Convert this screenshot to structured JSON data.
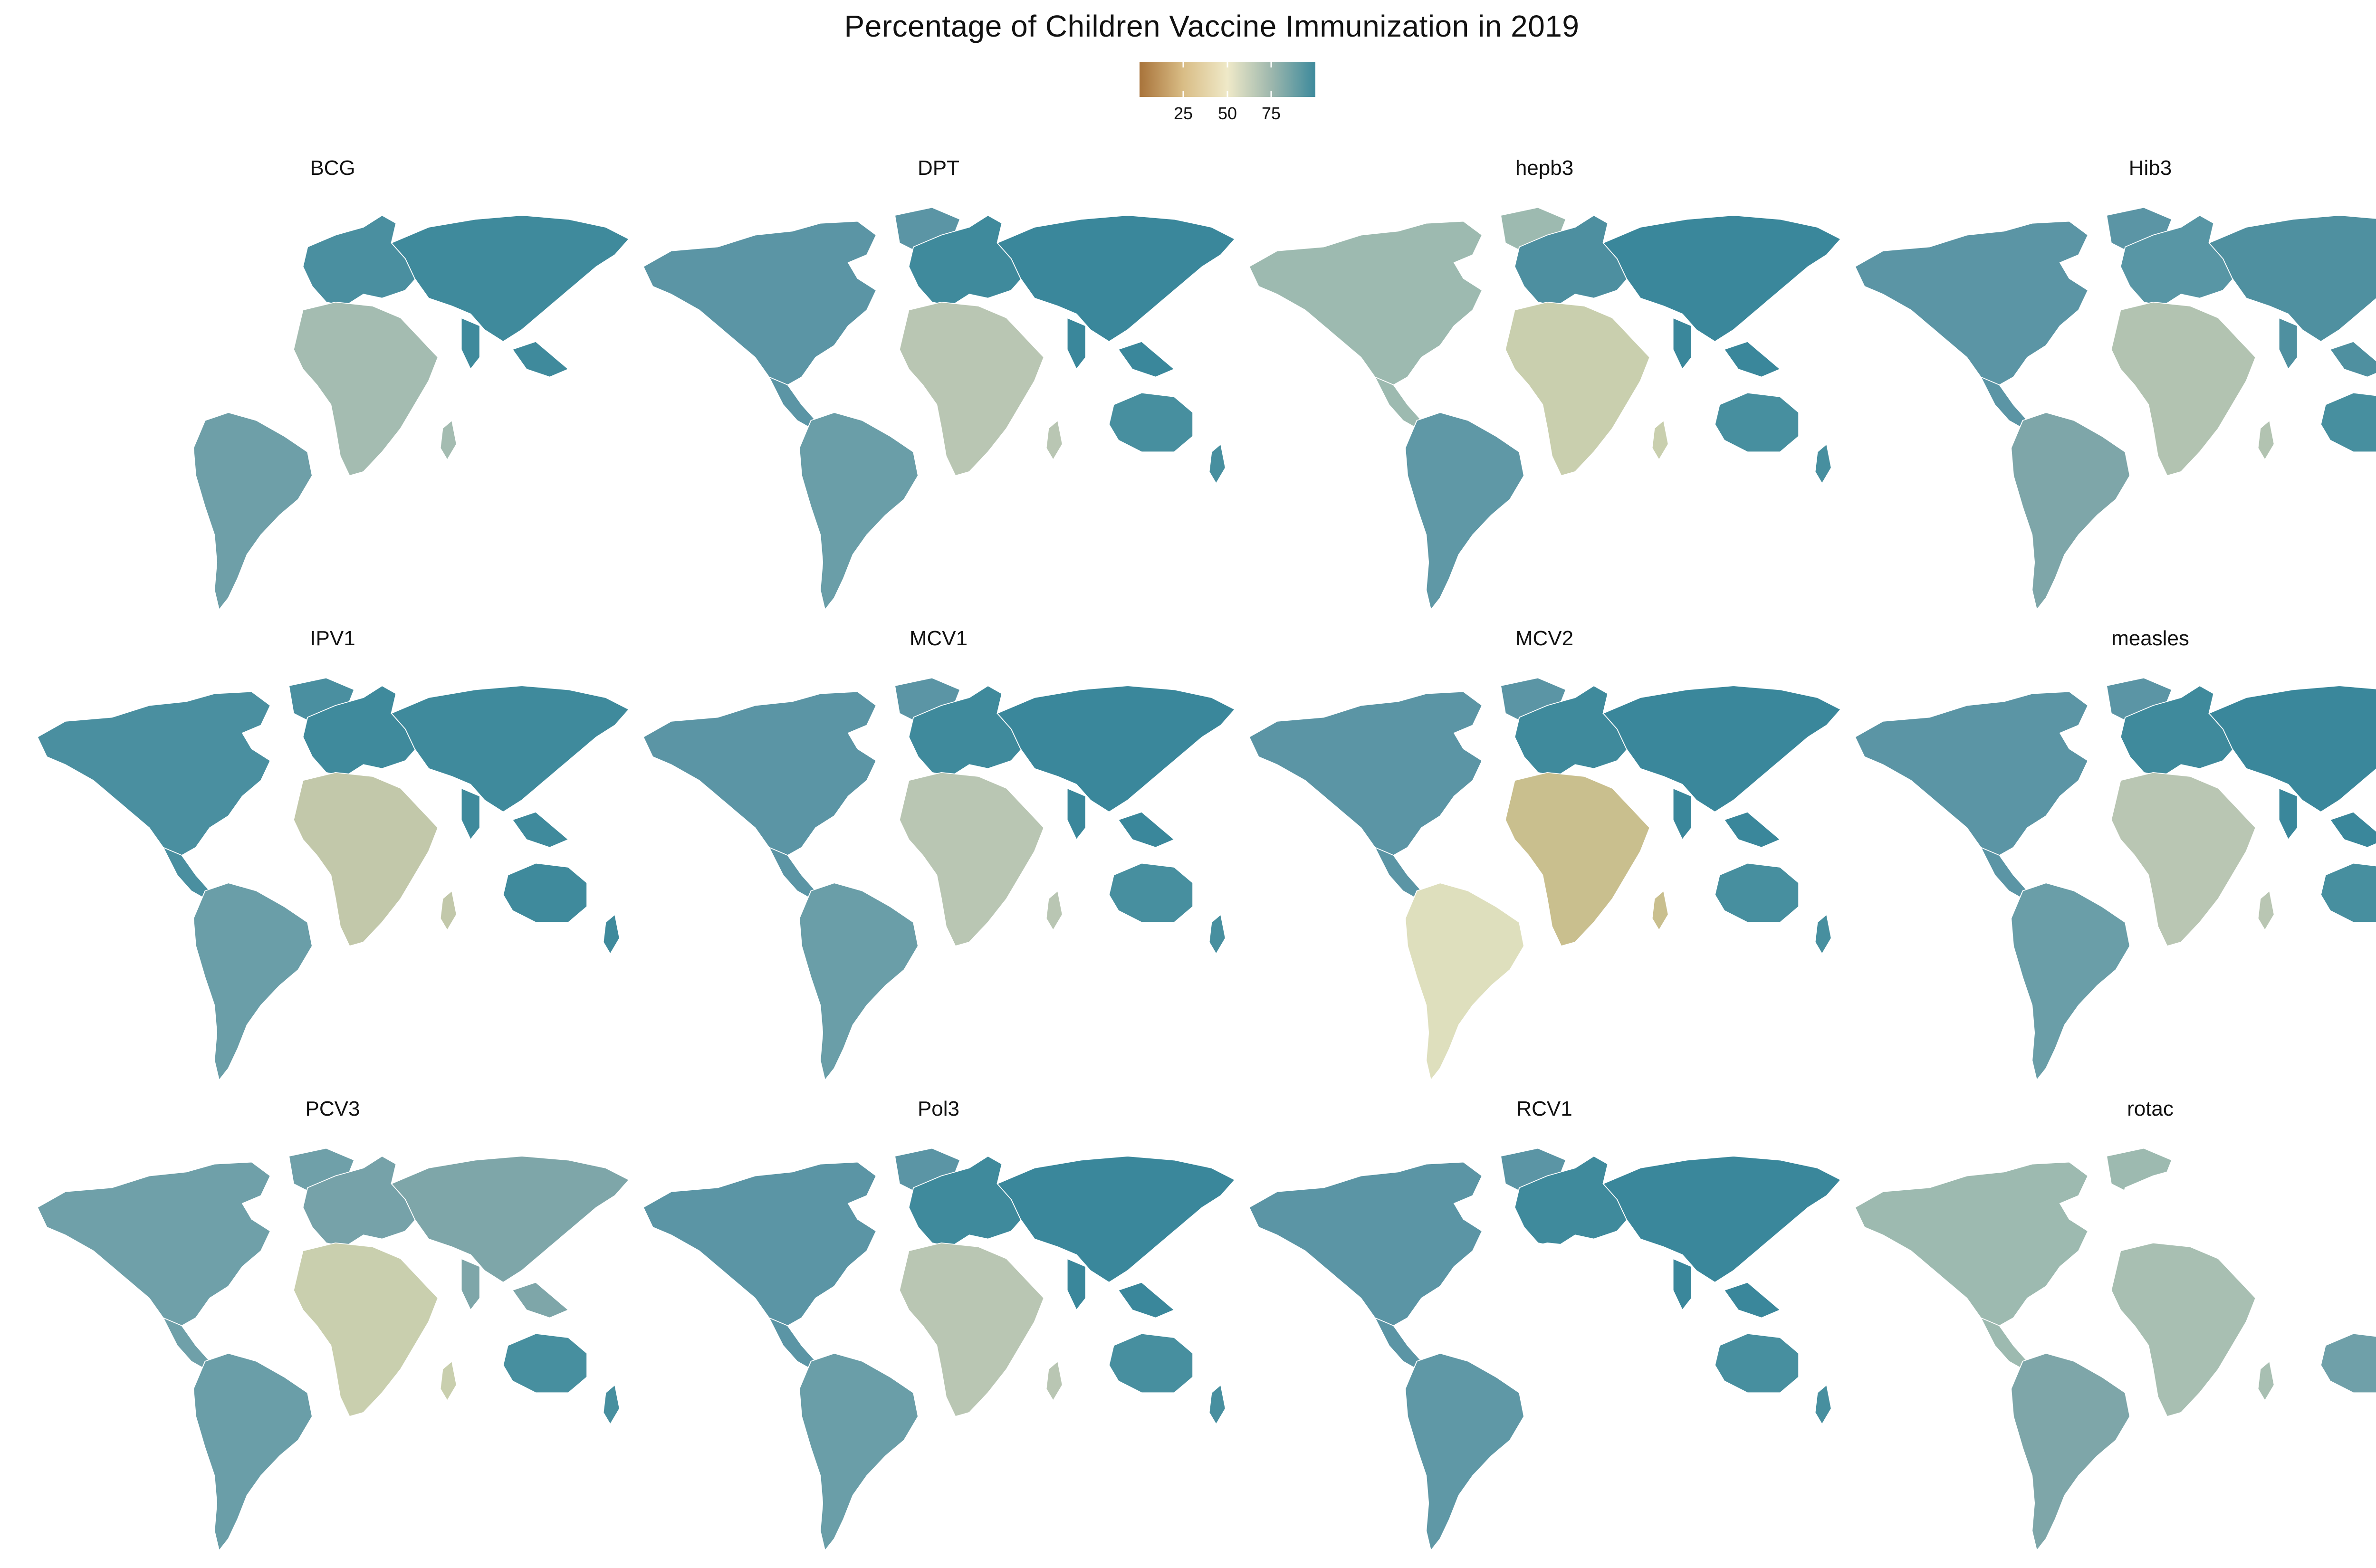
{
  "title": "Percentage of Children Vaccine Immunization in 2019",
  "legend": {
    "ticks": [
      25,
      50,
      75
    ],
    "range": [
      0,
      100
    ],
    "colors": [
      "#a8733a",
      "#d9bd86",
      "#efe9c8",
      "#9db7ad",
      "#3d8a9c"
    ]
  },
  "panels": [
    {
      "name": "BCG",
      "scheme": "bcg"
    },
    {
      "name": "DPT",
      "scheme": "default"
    },
    {
      "name": "hepb3",
      "scheme": "hepb"
    },
    {
      "name": "Hib3",
      "scheme": "hib"
    },
    {
      "name": "IPV1",
      "scheme": "ipv"
    },
    {
      "name": "MCV1",
      "scheme": "default"
    },
    {
      "name": "MCV2",
      "scheme": "mcv2"
    },
    {
      "name": "measles",
      "scheme": "default"
    },
    {
      "name": "PCV3",
      "scheme": "pcv"
    },
    {
      "name": "Pol3",
      "scheme": "default"
    },
    {
      "name": "RCV1",
      "scheme": "rcv"
    },
    {
      "name": "rotac",
      "scheme": "rota"
    }
  ]
}
